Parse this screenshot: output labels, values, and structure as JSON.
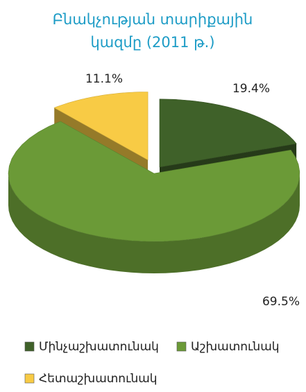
{
  "chart_data": {
    "type": "pie3d",
    "title": "Բնակչության տարիքային կազմը (2011 թ.)",
    "categories": [
      "Մինչաշխատունակ",
      "Աշխատունակ",
      "Հետաշխատունակ"
    ],
    "values": [
      19.4,
      69.5,
      11.1
    ],
    "value_labels": [
      "19.4%",
      "69.5%",
      "11.1%"
    ],
    "colors": [
      "#3f6129",
      "#6b9a37",
      "#f8cb45"
    ],
    "legend": "bottom"
  }
}
